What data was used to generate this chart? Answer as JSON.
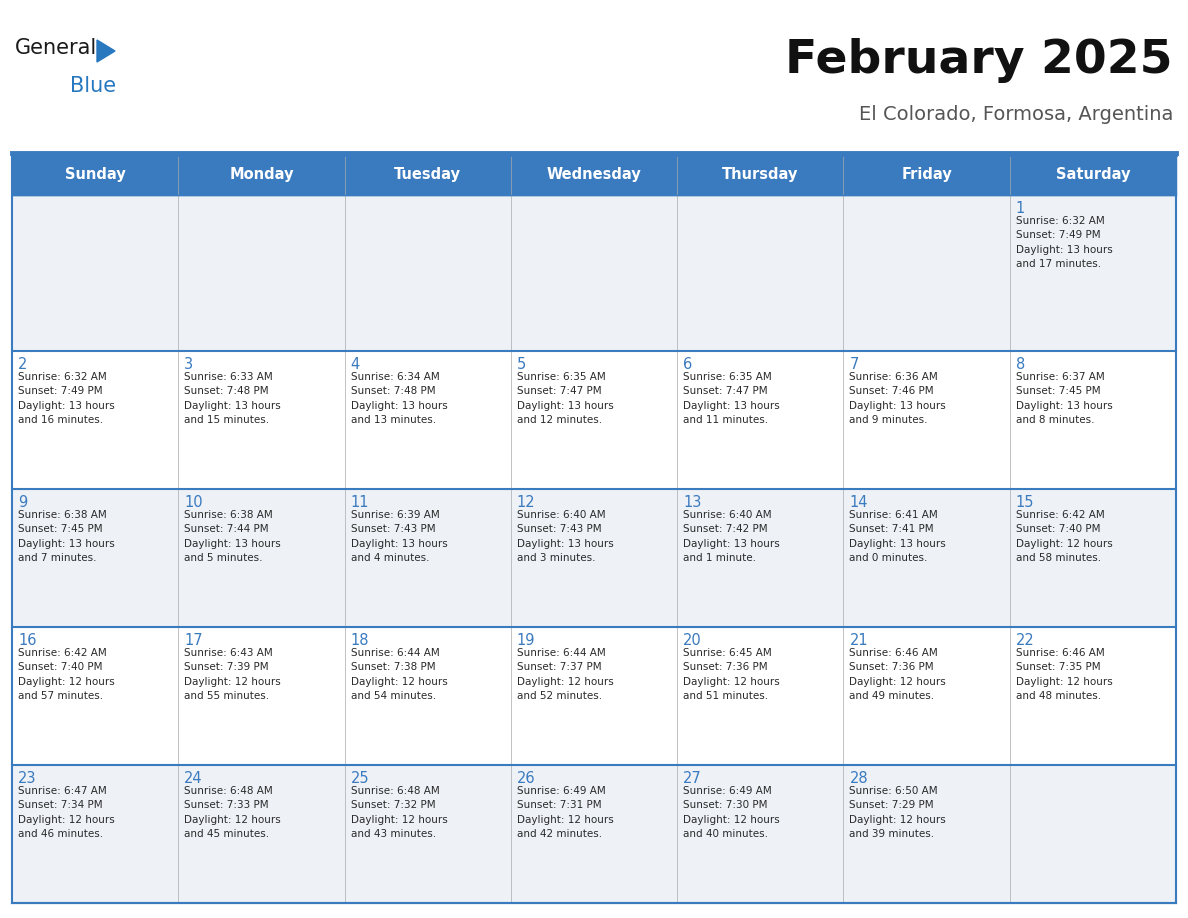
{
  "title": "February 2025",
  "subtitle": "El Colorado, Formosa, Argentina",
  "header_bg": "#3a7abf",
  "header_text_color": "#ffffff",
  "row_bg_light": "#eef2f7",
  "row_bg_white": "#ffffff",
  "border_color": "#3a7abf",
  "text_color": "#2a2a2a",
  "day_num_color": "#3a7abf",
  "day_headers": [
    "Sunday",
    "Monday",
    "Tuesday",
    "Wednesday",
    "Thursday",
    "Friday",
    "Saturday"
  ],
  "logo_color1": "#1a1a1a",
  "logo_color2": "#2878c0",
  "logo_triangle_color": "#2878c0",
  "weeks": [
    [
      {
        "day": null,
        "info": null
      },
      {
        "day": null,
        "info": null
      },
      {
        "day": null,
        "info": null
      },
      {
        "day": null,
        "info": null
      },
      {
        "day": null,
        "info": null
      },
      {
        "day": null,
        "info": null
      },
      {
        "day": 1,
        "info": "Sunrise: 6:32 AM\nSunset: 7:49 PM\nDaylight: 13 hours\nand 17 minutes."
      }
    ],
    [
      {
        "day": 2,
        "info": "Sunrise: 6:32 AM\nSunset: 7:49 PM\nDaylight: 13 hours\nand 16 minutes."
      },
      {
        "day": 3,
        "info": "Sunrise: 6:33 AM\nSunset: 7:48 PM\nDaylight: 13 hours\nand 15 minutes."
      },
      {
        "day": 4,
        "info": "Sunrise: 6:34 AM\nSunset: 7:48 PM\nDaylight: 13 hours\nand 13 minutes."
      },
      {
        "day": 5,
        "info": "Sunrise: 6:35 AM\nSunset: 7:47 PM\nDaylight: 13 hours\nand 12 minutes."
      },
      {
        "day": 6,
        "info": "Sunrise: 6:35 AM\nSunset: 7:47 PM\nDaylight: 13 hours\nand 11 minutes."
      },
      {
        "day": 7,
        "info": "Sunrise: 6:36 AM\nSunset: 7:46 PM\nDaylight: 13 hours\nand 9 minutes."
      },
      {
        "day": 8,
        "info": "Sunrise: 6:37 AM\nSunset: 7:45 PM\nDaylight: 13 hours\nand 8 minutes."
      }
    ],
    [
      {
        "day": 9,
        "info": "Sunrise: 6:38 AM\nSunset: 7:45 PM\nDaylight: 13 hours\nand 7 minutes."
      },
      {
        "day": 10,
        "info": "Sunrise: 6:38 AM\nSunset: 7:44 PM\nDaylight: 13 hours\nand 5 minutes."
      },
      {
        "day": 11,
        "info": "Sunrise: 6:39 AM\nSunset: 7:43 PM\nDaylight: 13 hours\nand 4 minutes."
      },
      {
        "day": 12,
        "info": "Sunrise: 6:40 AM\nSunset: 7:43 PM\nDaylight: 13 hours\nand 3 minutes."
      },
      {
        "day": 13,
        "info": "Sunrise: 6:40 AM\nSunset: 7:42 PM\nDaylight: 13 hours\nand 1 minute."
      },
      {
        "day": 14,
        "info": "Sunrise: 6:41 AM\nSunset: 7:41 PM\nDaylight: 13 hours\nand 0 minutes."
      },
      {
        "day": 15,
        "info": "Sunrise: 6:42 AM\nSunset: 7:40 PM\nDaylight: 12 hours\nand 58 minutes."
      }
    ],
    [
      {
        "day": 16,
        "info": "Sunrise: 6:42 AM\nSunset: 7:40 PM\nDaylight: 12 hours\nand 57 minutes."
      },
      {
        "day": 17,
        "info": "Sunrise: 6:43 AM\nSunset: 7:39 PM\nDaylight: 12 hours\nand 55 minutes."
      },
      {
        "day": 18,
        "info": "Sunrise: 6:44 AM\nSunset: 7:38 PM\nDaylight: 12 hours\nand 54 minutes."
      },
      {
        "day": 19,
        "info": "Sunrise: 6:44 AM\nSunset: 7:37 PM\nDaylight: 12 hours\nand 52 minutes."
      },
      {
        "day": 20,
        "info": "Sunrise: 6:45 AM\nSunset: 7:36 PM\nDaylight: 12 hours\nand 51 minutes."
      },
      {
        "day": 21,
        "info": "Sunrise: 6:46 AM\nSunset: 7:36 PM\nDaylight: 12 hours\nand 49 minutes."
      },
      {
        "day": 22,
        "info": "Sunrise: 6:46 AM\nSunset: 7:35 PM\nDaylight: 12 hours\nand 48 minutes."
      }
    ],
    [
      {
        "day": 23,
        "info": "Sunrise: 6:47 AM\nSunset: 7:34 PM\nDaylight: 12 hours\nand 46 minutes."
      },
      {
        "day": 24,
        "info": "Sunrise: 6:48 AM\nSunset: 7:33 PM\nDaylight: 12 hours\nand 45 minutes."
      },
      {
        "day": 25,
        "info": "Sunrise: 6:48 AM\nSunset: 7:32 PM\nDaylight: 12 hours\nand 43 minutes."
      },
      {
        "day": 26,
        "info": "Sunrise: 6:49 AM\nSunset: 7:31 PM\nDaylight: 12 hours\nand 42 minutes."
      },
      {
        "day": 27,
        "info": "Sunrise: 6:49 AM\nSunset: 7:30 PM\nDaylight: 12 hours\nand 40 minutes."
      },
      {
        "day": 28,
        "info": "Sunrise: 6:50 AM\nSunset: 7:29 PM\nDaylight: 12 hours\nand 39 minutes."
      },
      {
        "day": null,
        "info": null
      }
    ]
  ],
  "row_backgrounds": [
    "light",
    "white",
    "light",
    "white",
    "light"
  ]
}
